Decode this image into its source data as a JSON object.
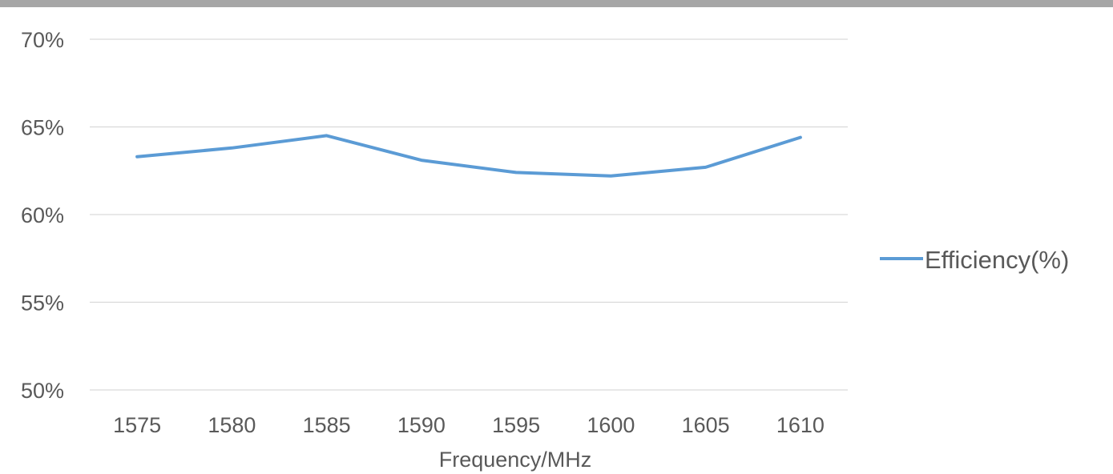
{
  "chart_data": {
    "type": "line",
    "title": "",
    "xlabel": "Frequency/MHz",
    "ylabel": "",
    "categories": [
      "1575",
      "1580",
      "1585",
      "1590",
      "1595",
      "1600",
      "1605",
      "1610"
    ],
    "series": [
      {
        "name": "Efficiency(%)",
        "color": "#5B9BD5",
        "values": [
          63.3,
          63.8,
          64.5,
          63.1,
          62.4,
          62.2,
          62.7,
          64.4
        ]
      }
    ],
    "ylim": [
      50,
      70
    ],
    "yticks": [
      50,
      55,
      60,
      65,
      70
    ],
    "ytick_labels": [
      "50%",
      "55%",
      "60%",
      "65%",
      "70%"
    ],
    "grid": true,
    "legend_position": "right",
    "colors": {
      "top_border": "#a6a6a6",
      "gridline": "#d9d9d9",
      "text": "#595959"
    }
  }
}
